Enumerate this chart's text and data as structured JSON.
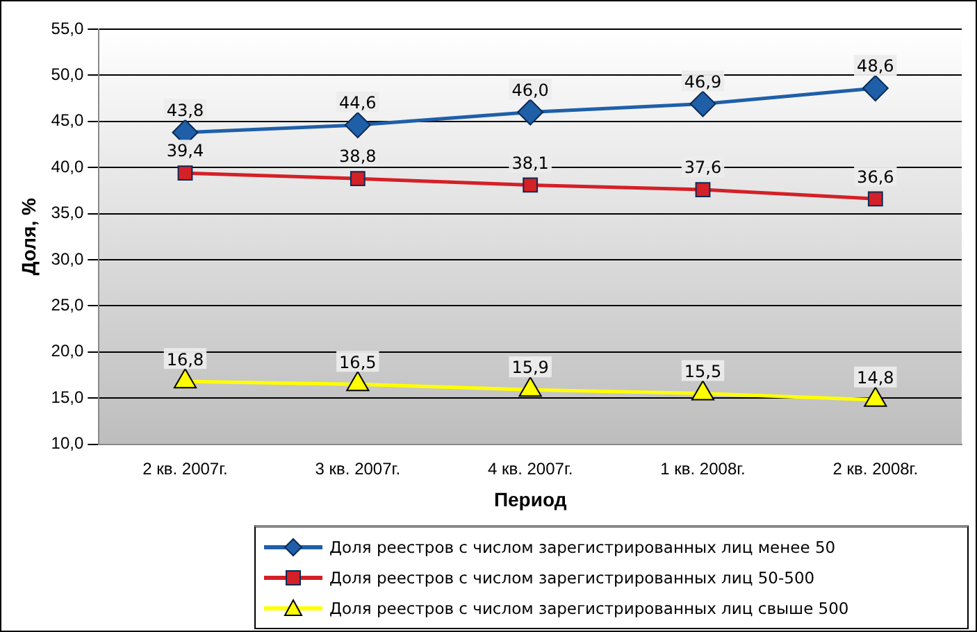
{
  "chart_data": {
    "type": "line",
    "xlabel": "Период",
    "ylabel": "Доля, %",
    "categories": [
      "2 кв. 2007г.",
      "3 кв. 2007г.",
      "4 кв. 2007г.",
      "1 кв. 2008г.",
      "2 кв. 2008г."
    ],
    "series": [
      {
        "name": "Доля реестров с числом зарегистрированных лиц менее 50",
        "color": "#1f5fa8",
        "marker": "diamond",
        "values": [
          43.8,
          44.6,
          46.0,
          46.9,
          48.6
        ],
        "value_labels": [
          "43,8",
          "44,6",
          "46,0",
          "46,9",
          "48,6"
        ]
      },
      {
        "name": "Доля реестров с числом зарегистрированных лиц 50-500",
        "color": "#d42027",
        "marker": "square",
        "values": [
          39.4,
          38.8,
          38.1,
          37.6,
          36.6
        ],
        "value_labels": [
          "39,4",
          "38,8",
          "38,1",
          "37,6",
          "36,6"
        ]
      },
      {
        "name": "Доля реестров с числом зарегистрированных лиц свыше 500",
        "color": "#ffff00",
        "marker": "triangle",
        "values": [
          16.8,
          16.5,
          15.9,
          15.5,
          14.8
        ],
        "value_labels": [
          "16,8",
          "16,5",
          "15,9",
          "15,5",
          "14,8"
        ]
      }
    ],
    "ylim": [
      10,
      55
    ],
    "yticks": [
      {
        "value": 10,
        "label": "10,0"
      },
      {
        "value": 15,
        "label": "15,0"
      },
      {
        "value": 20,
        "label": "20,0"
      },
      {
        "value": 25,
        "label": "25,0"
      },
      {
        "value": 30,
        "label": "30,0"
      },
      {
        "value": 35,
        "label": "35,0"
      },
      {
        "value": 40,
        "label": "40,0"
      },
      {
        "value": 45,
        "label": "45,0"
      },
      {
        "value": 50,
        "label": "50,0"
      },
      {
        "value": 55,
        "label": "55,0"
      }
    ],
    "grid": "y",
    "legend": "bottom"
  }
}
